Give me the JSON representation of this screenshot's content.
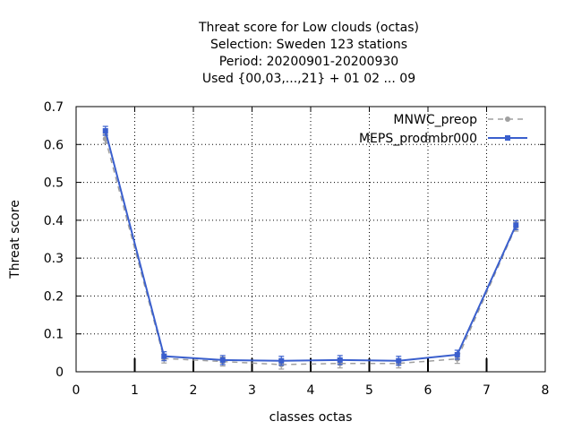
{
  "chart_data": {
    "type": "line",
    "title_lines": [
      "Threat score  for Low clouds (octas)",
      "Selection: Sweden     123 stations",
      "Period: 20200901-20200930",
      "Used {00,03,...,21} + 01 02 ... 09"
    ],
    "xlabel": "classes octas",
    "ylabel": "Threat score",
    "xlim": [
      0,
      8
    ],
    "ylim": [
      0,
      0.7
    ],
    "xticks": [
      "0",
      "1",
      "2",
      "3",
      "4",
      "5",
      "6",
      "7",
      "8"
    ],
    "yticks": [
      "0",
      "0.1",
      "0.2",
      "0.3",
      "0.4",
      "0.5",
      "0.6",
      "0.7"
    ],
    "grid": true,
    "legend_position": "top-right",
    "x": [
      0.5,
      1.5,
      2.5,
      3.5,
      4.5,
      5.5,
      6.5,
      7.5
    ],
    "series": [
      {
        "name": "MNWC_preop",
        "color": "#a0a0a0",
        "style": "dashed",
        "values": [
          0.615,
          0.035,
          0.027,
          0.019,
          0.022,
          0.022,
          0.034,
          0.383
        ]
      },
      {
        "name": "MEPS_prodmbr000",
        "color": "#3a5fcd",
        "style": "solid",
        "values": [
          0.636,
          0.041,
          0.031,
          0.029,
          0.031,
          0.029,
          0.045,
          0.387
        ]
      }
    ]
  }
}
